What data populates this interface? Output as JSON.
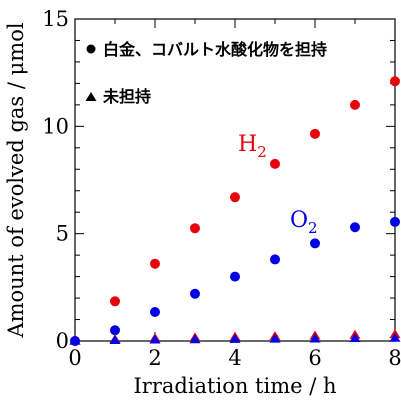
{
  "chart_data": {
    "type": "scatter",
    "xlabel": "Irradiation time / h",
    "ylabel": "Amount of evolved gas / μmol",
    "xlim": [
      0,
      8
    ],
    "ylim": [
      0,
      15
    ],
    "xticks": [
      "0",
      "2",
      "4",
      "6",
      "8"
    ],
    "yticks": [
      "0",
      "5",
      "10",
      "15"
    ],
    "grid": false,
    "legend": {
      "placement": "top-left",
      "entries": [
        {
          "marker": "circle",
          "label": "白金、コバルト水酸化物を担持"
        },
        {
          "marker": "triangle",
          "label": "未担持"
        }
      ]
    },
    "annotations": [
      {
        "text": "H",
        "sub": "2",
        "color": "#e8000b"
      },
      {
        "text": "O",
        "sub": "2",
        "color": "#0000e6"
      }
    ],
    "series": [
      {
        "marker": "circle",
        "color": "#e8000b",
        "x": [
          0,
          1,
          2,
          3,
          4,
          5,
          6,
          7,
          8
        ],
        "y": [
          0,
          1.85,
          3.6,
          5.25,
          6.7,
          8.25,
          9.65,
          11.0,
          12.1
        ]
      },
      {
        "marker": "circle",
        "color": "#0000e6",
        "x": [
          0,
          1,
          2,
          3,
          4,
          5,
          6,
          7,
          8
        ],
        "y": [
          0,
          0.5,
          1.35,
          2.2,
          3.0,
          3.8,
          4.55,
          5.3,
          5.55
        ]
      },
      {
        "marker": "triangle",
        "color": "#e8000b",
        "x": [
          0,
          1,
          2,
          3,
          4,
          5,
          6,
          7,
          8
        ],
        "y": [
          0,
          0.07,
          0.12,
          0.15,
          0.18,
          0.21,
          0.24,
          0.27,
          0.3
        ]
      },
      {
        "marker": "triangle",
        "color": "#0000e6",
        "x": [
          0,
          1,
          2,
          3,
          4,
          5,
          6,
          7,
          8
        ],
        "y": [
          0,
          0.03,
          0.05,
          0.06,
          0.08,
          0.09,
          0.1,
          0.12,
          0.13
        ]
      }
    ]
  }
}
